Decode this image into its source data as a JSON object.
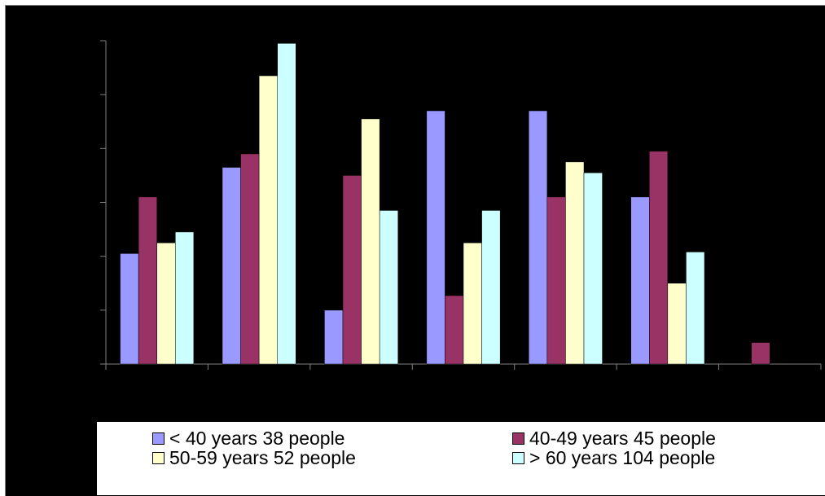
{
  "chart_data": {
    "type": "bar",
    "categories": [
      "",
      "",
      "",
      "",
      "",
      "",
      ""
    ],
    "ylim": [
      0,
      6
    ],
    "grid": false,
    "legend_position": "bottom",
    "series": [
      {
        "name": "< 40 years 38 people",
        "color": "#9999ff",
        "values": [
          2.05,
          3.65,
          1.0,
          4.7,
          4.7,
          3.1,
          0
        ]
      },
      {
        "name": "40-49 years 45 people",
        "color": "#993366",
        "values": [
          3.1,
          3.9,
          3.5,
          1.27,
          3.1,
          3.95,
          0.4
        ]
      },
      {
        "name": "50-59 years 52 people",
        "color": "#ffffcc",
        "values": [
          2.25,
          5.35,
          4.55,
          2.25,
          3.75,
          1.5,
          0
        ]
      },
      {
        "name": "> 60 years 104 people",
        "color": "#ccffff",
        "values": [
          2.45,
          5.95,
          2.85,
          2.85,
          3.55,
          2.08,
          0
        ]
      }
    ]
  }
}
